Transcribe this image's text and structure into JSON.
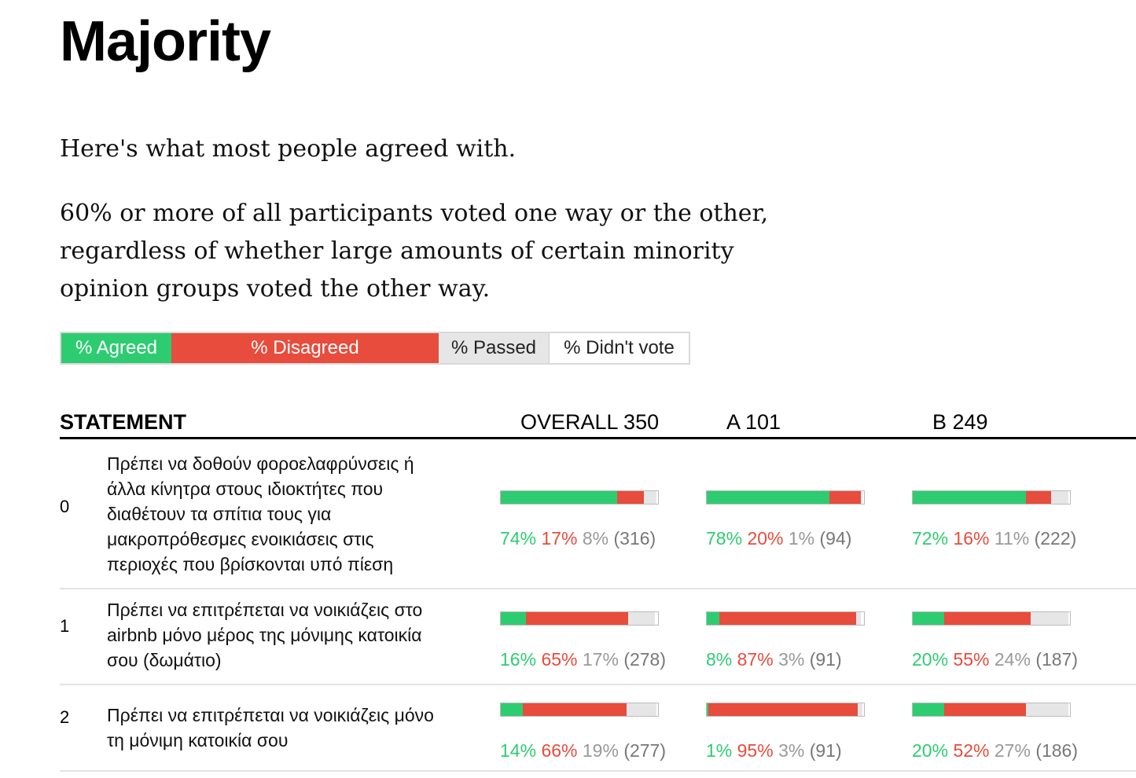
{
  "page": {
    "title": "Majority",
    "intro": "Here's what most people agreed with.",
    "description": "60% or more of all participants voted one way or the other, regardless of whether large amounts of certain minority opinion groups voted the other way."
  },
  "legend": {
    "agreed": "% Agreed",
    "disagreed": "% Disagreed",
    "passed": "% Passed",
    "didnt_vote": "% Didn't vote"
  },
  "table": {
    "headers": {
      "statement": "STATEMENT",
      "overall": "OVERALL 350",
      "group_a": "A 101",
      "group_b": "B 249"
    },
    "rows": [
      {
        "index": "0",
        "text": "Πρέπει να δοθούν φοροελαφρύνσεις ή άλλα κίνητρα στους ιδιοκτήτες που διαθέτουν τα σπίτια τους για μακροπρόθεσμες ενοικιάσεις στις περιοχές που βρίσκονται υπό πίεση",
        "overall": {
          "agree": 74,
          "disagree": 17,
          "pass": 8,
          "agree_label": "74%",
          "disagree_label": "17%",
          "pass_label": "8%",
          "count": "(316)"
        },
        "a": {
          "agree": 78,
          "disagree": 20,
          "pass": 1,
          "agree_label": "78%",
          "disagree_label": "20%",
          "pass_label": "1%",
          "count": "(94)"
        },
        "b": {
          "agree": 72,
          "disagree": 16,
          "pass": 11,
          "agree_label": "72%",
          "disagree_label": "16%",
          "pass_label": "11%",
          "count": "(222)"
        }
      },
      {
        "index": "1",
        "text": "Πρέπει να επιτρέπεται να νοικιάζεις στο airbnb μόνο μέρος της μόνιμης κατοικία σου (δωμάτιο)",
        "overall": {
          "agree": 16,
          "disagree": 65,
          "pass": 17,
          "agree_label": "16%",
          "disagree_label": "65%",
          "pass_label": "17%",
          "count": "(278)"
        },
        "a": {
          "agree": 8,
          "disagree": 87,
          "pass": 3,
          "agree_label": "8%",
          "disagree_label": "87%",
          "pass_label": "3%",
          "count": "(91)"
        },
        "b": {
          "agree": 20,
          "disagree": 55,
          "pass": 24,
          "agree_label": "20%",
          "disagree_label": "55%",
          "pass_label": "24%",
          "count": "(187)"
        }
      },
      {
        "index": "2",
        "text": "Πρέπει να επιτρέπεται να νοικιάζεις μόνο τη μόνιμη κατοικία σου",
        "overall": {
          "agree": 14,
          "disagree": 66,
          "pass": 19,
          "agree_label": "14%",
          "disagree_label": "66%",
          "pass_label": "19%",
          "count": "(277)"
        },
        "a": {
          "agree": 1,
          "disagree": 95,
          "pass": 3,
          "agree_label": "1%",
          "disagree_label": "95%",
          "pass_label": "3%",
          "count": "(91)"
        },
        "b": {
          "agree": 20,
          "disagree": 52,
          "pass": 27,
          "agree_label": "20%",
          "disagree_label": "52%",
          "pass_label": "27%",
          "count": "(186)"
        }
      }
    ]
  },
  "colors": {
    "agreed": "#2ecc71",
    "disagreed": "#e74c3c",
    "passed": "#e6e6e6",
    "didnt_vote": "#ffffff"
  }
}
